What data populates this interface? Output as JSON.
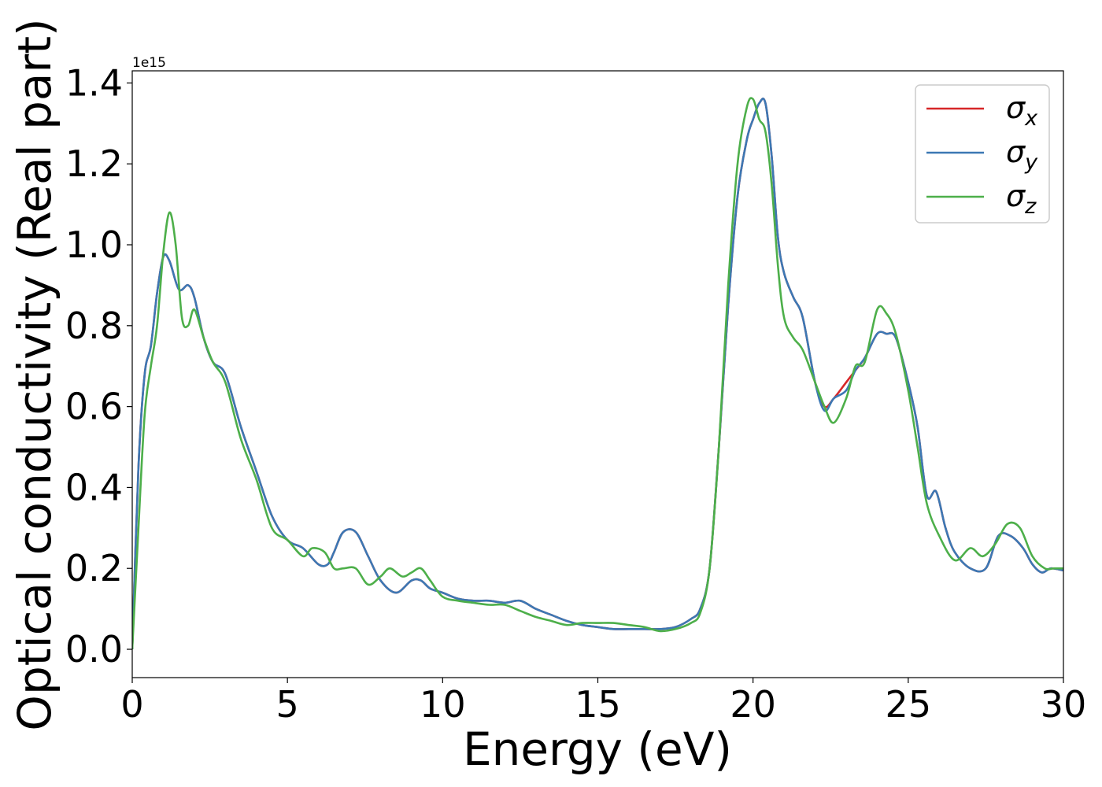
{
  "chart_data": {
    "type": "line",
    "xlabel": "Energy (eV)",
    "ylabel": "Optical conductivity (Real part)",
    "y_offset_text": "1e15",
    "xlim": [
      0,
      30
    ],
    "ylim": [
      -0.07,
      1.43
    ],
    "x_ticks": [
      0,
      5,
      10,
      15,
      20,
      25,
      30
    ],
    "x_tick_labels": [
      "0",
      "5",
      "10",
      "15",
      "20",
      "25",
      "30"
    ],
    "y_ticks": [
      0.0,
      0.2,
      0.4,
      0.6,
      0.8,
      1.0,
      1.2,
      1.4
    ],
    "y_tick_labels": [
      "0.0",
      "0.2",
      "0.4",
      "0.6",
      "0.8",
      "1.0",
      "1.2",
      "1.4"
    ],
    "grid": false,
    "legend_position": "top-right",
    "series": [
      {
        "name": "σx",
        "symbol": "σ",
        "subscript": "x",
        "color": "#d62728",
        "x": [
          0,
          0.2,
          0.4,
          0.6,
          0.8,
          1.0,
          1.2,
          1.5,
          1.8,
          2.0,
          2.3,
          2.6,
          3.0,
          3.5,
          4.0,
          4.5,
          5.0,
          5.5,
          6.0,
          6.3,
          6.5,
          6.8,
          7.2,
          7.6,
          8.0,
          8.5,
          9.0,
          9.3,
          9.6,
          10.0,
          10.5,
          11.0,
          11.5,
          12.0,
          12.5,
          13.0,
          13.5,
          14.0,
          14.5,
          15.0,
          15.5,
          16.0,
          16.5,
          17.0,
          17.5,
          18.0,
          18.3,
          18.6,
          18.9,
          19.2,
          19.5,
          19.8,
          20.0,
          20.2,
          20.4,
          20.6,
          20.8,
          21.0,
          21.3,
          21.6,
          22.0,
          22.3,
          22.6,
          23.0,
          23.3,
          23.6,
          24.0,
          24.3,
          24.6,
          25.0,
          25.3,
          25.6,
          25.9,
          26.2,
          26.5,
          27.0,
          27.5,
          27.9,
          28.3,
          28.7,
          29.0,
          29.3,
          29.6,
          30.0
        ],
        "y": [
          0.0,
          0.45,
          0.68,
          0.75,
          0.88,
          0.97,
          0.96,
          0.89,
          0.9,
          0.87,
          0.77,
          0.71,
          0.68,
          0.55,
          0.44,
          0.33,
          0.27,
          0.25,
          0.21,
          0.21,
          0.24,
          0.29,
          0.29,
          0.23,
          0.17,
          0.14,
          0.17,
          0.17,
          0.15,
          0.14,
          0.125,
          0.12,
          0.12,
          0.115,
          0.12,
          0.1,
          0.085,
          0.07,
          0.06,
          0.055,
          0.05,
          0.05,
          0.05,
          0.05,
          0.055,
          0.075,
          0.1,
          0.2,
          0.5,
          0.85,
          1.12,
          1.26,
          1.31,
          1.35,
          1.35,
          1.22,
          1.02,
          0.93,
          0.87,
          0.82,
          0.66,
          0.6,
          0.62,
          0.66,
          0.69,
          0.72,
          0.78,
          0.78,
          0.77,
          0.66,
          0.55,
          0.38,
          0.39,
          0.3,
          0.24,
          0.2,
          0.2,
          0.28,
          0.28,
          0.25,
          0.21,
          0.19,
          0.2,
          0.195
        ]
      },
      {
        "name": "σy",
        "symbol": "σ",
        "subscript": "y",
        "color": "#3c78b4",
        "x": [
          0,
          0.2,
          0.4,
          0.6,
          0.8,
          1.0,
          1.2,
          1.5,
          1.8,
          2.0,
          2.3,
          2.6,
          3.0,
          3.5,
          4.0,
          4.5,
          5.0,
          5.5,
          6.0,
          6.3,
          6.5,
          6.8,
          7.2,
          7.6,
          8.0,
          8.5,
          9.0,
          9.3,
          9.6,
          10.0,
          10.5,
          11.0,
          11.5,
          12.0,
          12.5,
          13.0,
          13.5,
          14.0,
          14.5,
          15.0,
          15.5,
          16.0,
          16.5,
          17.0,
          17.5,
          18.0,
          18.3,
          18.6,
          18.9,
          19.2,
          19.5,
          19.8,
          20.0,
          20.2,
          20.4,
          20.6,
          20.8,
          21.0,
          21.3,
          21.6,
          22.0,
          22.3,
          22.6,
          23.0,
          23.3,
          23.6,
          24.0,
          24.3,
          24.6,
          25.0,
          25.3,
          25.6,
          25.9,
          26.2,
          26.5,
          27.0,
          27.5,
          27.9,
          28.3,
          28.7,
          29.0,
          29.3,
          29.6,
          30.0
        ],
        "y": [
          0.0,
          0.45,
          0.68,
          0.75,
          0.88,
          0.97,
          0.96,
          0.89,
          0.9,
          0.87,
          0.77,
          0.71,
          0.68,
          0.55,
          0.44,
          0.33,
          0.27,
          0.25,
          0.21,
          0.21,
          0.24,
          0.29,
          0.29,
          0.23,
          0.17,
          0.14,
          0.17,
          0.17,
          0.15,
          0.14,
          0.125,
          0.12,
          0.12,
          0.115,
          0.12,
          0.1,
          0.085,
          0.07,
          0.06,
          0.055,
          0.05,
          0.05,
          0.05,
          0.05,
          0.055,
          0.075,
          0.1,
          0.2,
          0.5,
          0.85,
          1.12,
          1.26,
          1.31,
          1.35,
          1.35,
          1.22,
          1.02,
          0.93,
          0.87,
          0.82,
          0.66,
          0.59,
          0.62,
          0.64,
          0.69,
          0.72,
          0.78,
          0.78,
          0.77,
          0.66,
          0.55,
          0.38,
          0.39,
          0.3,
          0.24,
          0.2,
          0.2,
          0.28,
          0.28,
          0.25,
          0.21,
          0.19,
          0.2,
          0.195
        ]
      },
      {
        "name": "σz",
        "symbol": "σ",
        "subscript": "z",
        "color": "#4daf4a",
        "x": [
          0,
          0.2,
          0.4,
          0.6,
          0.8,
          1.0,
          1.2,
          1.4,
          1.6,
          1.8,
          2.0,
          2.3,
          2.6,
          3.0,
          3.5,
          4.0,
          4.5,
          5.0,
          5.5,
          5.8,
          6.2,
          6.5,
          6.8,
          7.2,
          7.6,
          8.0,
          8.3,
          8.7,
          9.0,
          9.3,
          9.6,
          10.0,
          10.5,
          11.0,
          11.5,
          12.0,
          12.5,
          13.0,
          13.5,
          14.0,
          14.5,
          15.0,
          15.5,
          16.0,
          16.5,
          17.0,
          17.5,
          18.0,
          18.3,
          18.6,
          18.9,
          19.2,
          19.5,
          19.8,
          20.0,
          20.2,
          20.4,
          20.6,
          20.8,
          21.0,
          21.3,
          21.6,
          22.0,
          22.3,
          22.6,
          23.0,
          23.3,
          23.6,
          24.0,
          24.3,
          24.6,
          25.0,
          25.3,
          25.6,
          26.0,
          26.5,
          27.0,
          27.4,
          27.8,
          28.2,
          28.6,
          29.0,
          29.4,
          29.7,
          30.0
        ],
        "y": [
          0.0,
          0.3,
          0.58,
          0.7,
          0.8,
          0.98,
          1.08,
          1.0,
          0.82,
          0.8,
          0.84,
          0.77,
          0.71,
          0.66,
          0.52,
          0.42,
          0.3,
          0.27,
          0.23,
          0.25,
          0.24,
          0.2,
          0.2,
          0.2,
          0.16,
          0.18,
          0.2,
          0.18,
          0.19,
          0.2,
          0.17,
          0.13,
          0.12,
          0.115,
          0.11,
          0.11,
          0.095,
          0.08,
          0.07,
          0.06,
          0.065,
          0.065,
          0.065,
          0.06,
          0.055,
          0.045,
          0.05,
          0.065,
          0.09,
          0.2,
          0.5,
          0.9,
          1.2,
          1.34,
          1.36,
          1.31,
          1.28,
          1.15,
          0.95,
          0.82,
          0.77,
          0.74,
          0.66,
          0.6,
          0.56,
          0.62,
          0.7,
          0.71,
          0.84,
          0.83,
          0.78,
          0.64,
          0.5,
          0.36,
          0.28,
          0.22,
          0.25,
          0.23,
          0.26,
          0.31,
          0.3,
          0.23,
          0.2,
          0.2,
          0.2
        ]
      }
    ]
  }
}
